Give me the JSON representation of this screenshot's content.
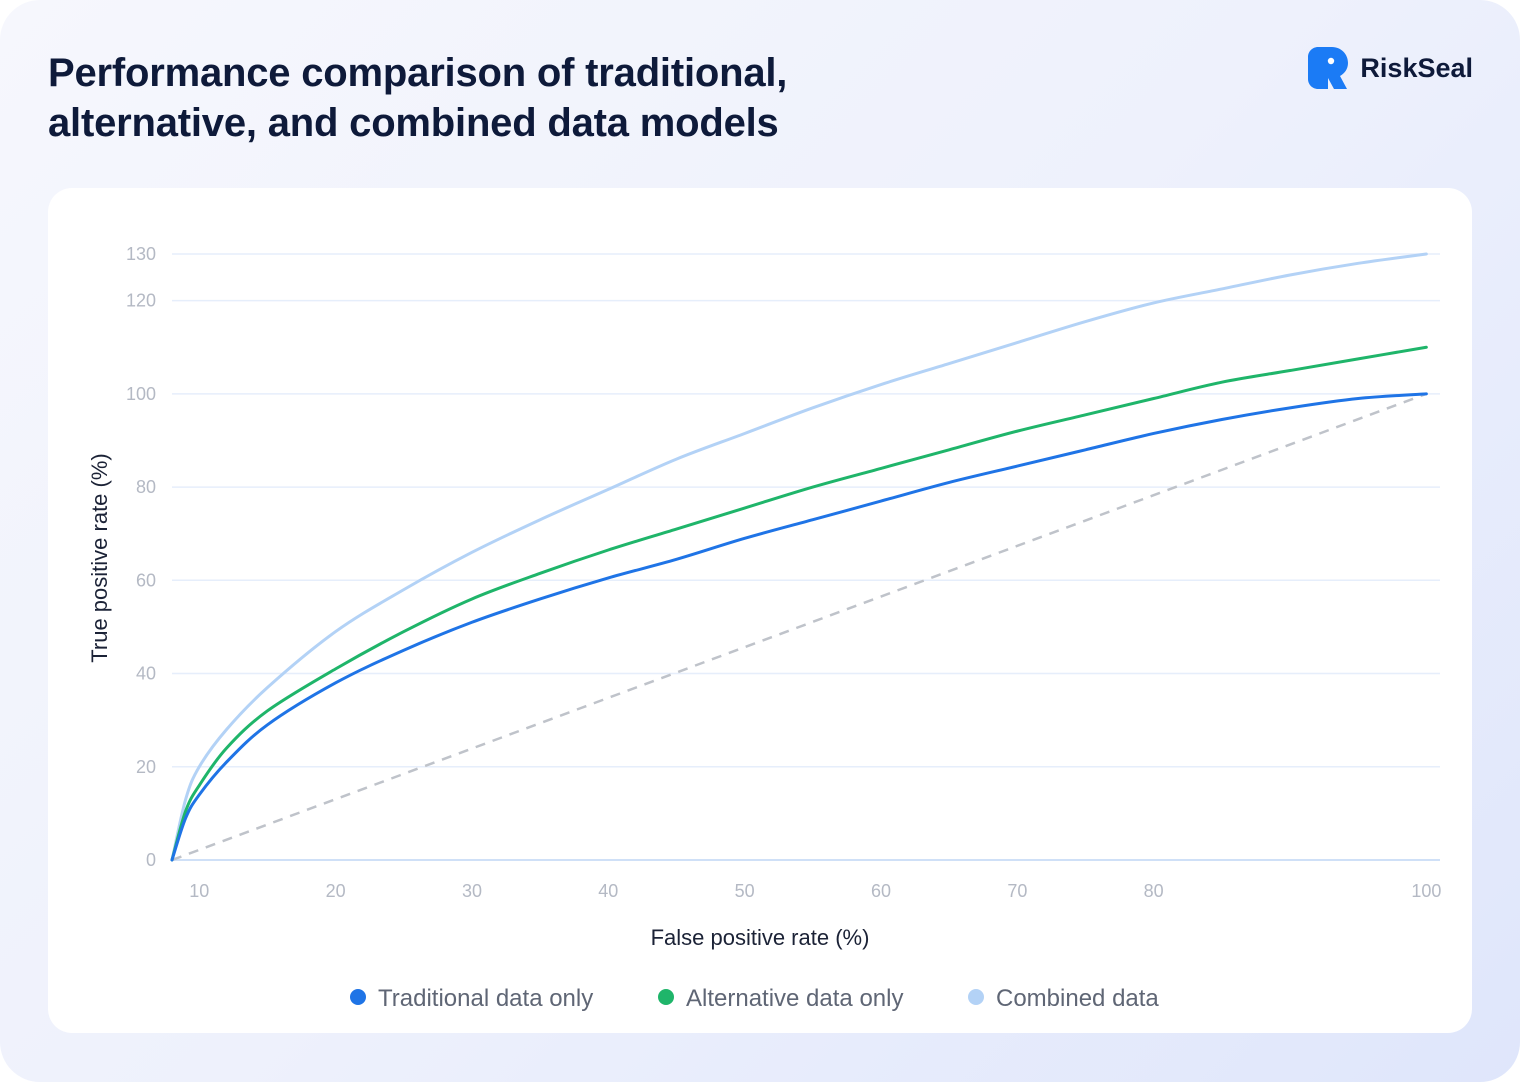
{
  "title": {
    "line1": "Performance comparison of traditional,",
    "line2": "alternative, and combined data models"
  },
  "brand": {
    "name": "RiskSeal",
    "icon": "riskseal-logo-icon",
    "color": "#1b7bf5"
  },
  "chart_data": {
    "type": "line",
    "xlabel": "False positive rate (%)",
    "ylabel": "True positive rate (%)",
    "xlim": [
      8,
      101
    ],
    "ylim": [
      0,
      130
    ],
    "xticks": [
      10,
      20,
      30,
      40,
      50,
      60,
      70,
      80,
      100
    ],
    "yticks": [
      0,
      20,
      40,
      60,
      80,
      100,
      120,
      130
    ],
    "grid": true,
    "legend_position": "bottom-center",
    "series": [
      {
        "name": "Traditional data only",
        "color": "#1f74e6",
        "x": [
          8,
          9,
          10,
          12,
          15,
          20,
          25,
          30,
          35,
          40,
          45,
          50,
          55,
          60,
          65,
          70,
          75,
          80,
          85,
          90,
          95,
          100
        ],
        "y": [
          0,
          9,
          14,
          21,
          29,
          38,
          45,
          51,
          56,
          60.5,
          64.5,
          69,
          73,
          77,
          81,
          84.5,
          88,
          91.5,
          94.5,
          97,
          99,
          100
        ]
      },
      {
        "name": "Alternative data only",
        "color": "#1fb56a",
        "x": [
          8,
          9,
          10,
          12,
          15,
          20,
          25,
          30,
          35,
          40,
          45,
          50,
          55,
          60,
          65,
          70,
          75,
          80,
          85,
          90,
          95,
          100
        ],
        "y": [
          0,
          10.5,
          16,
          24,
          32,
          41,
          49,
          56,
          61.5,
          66.5,
          71,
          75.5,
          80,
          84,
          88,
          92,
          95.5,
          99,
          102.5,
          105,
          107.5,
          110
        ]
      },
      {
        "name": "Combined data",
        "color": "#b3d2f6",
        "x": [
          8,
          9,
          10,
          12,
          15,
          20,
          25,
          30,
          35,
          40,
          45,
          50,
          55,
          60,
          65,
          70,
          75,
          80,
          85,
          90,
          95,
          100
        ],
        "y": [
          0,
          13,
          20,
          28,
          37,
          49,
          58,
          66,
          73,
          79.5,
          86,
          91.5,
          97,
          102,
          106.5,
          111,
          115.5,
          119.5,
          122.5,
          125.5,
          128,
          130
        ]
      }
    ],
    "reference_line": {
      "style": "dashed",
      "color": "#bfc3ca",
      "x": [
        8,
        100
      ],
      "y": [
        0,
        100
      ]
    }
  }
}
